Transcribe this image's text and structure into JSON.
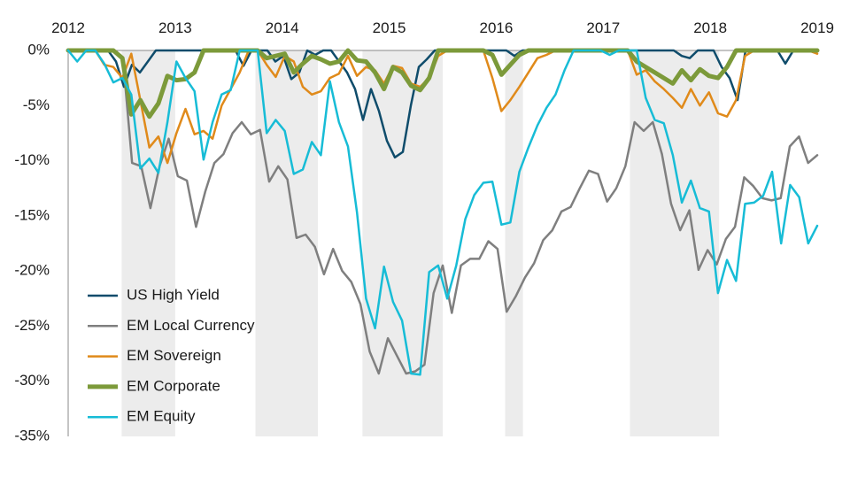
{
  "chart_data": {
    "type": "line",
    "title": "",
    "xlabel": "",
    "ylabel": "",
    "x_start": "2012-01",
    "x_end": "2019-01",
    "x_ticks": [
      "2012",
      "2013",
      "2014",
      "2015",
      "2016",
      "2017",
      "2018",
      "2019"
    ],
    "y_ticks": [
      "0%",
      "-5%",
      "-10%",
      "-15%",
      "-20%",
      "-25%",
      "-30%",
      "-35%"
    ],
    "ylim": [
      -35,
      0
    ],
    "legend_position": "bottom-left",
    "shaded_periods": [
      [
        "2012-07",
        "2013-01"
      ],
      [
        "2013-10",
        "2014-05"
      ],
      [
        "2014-10",
        "2015-07"
      ],
      [
        "2016-02",
        "2016-04"
      ],
      [
        "2017-04",
        "2018-02"
      ]
    ],
    "series": [
      {
        "name": "US High Yield",
        "color": "#0f4c6b",
        "width": 2.5,
        "values": [
          0,
          0,
          0,
          0,
          0,
          0,
          -1,
          -3.3,
          -1.3,
          -2,
          -1,
          0,
          0,
          0,
          0,
          0,
          0,
          0,
          0,
          0,
          0,
          0,
          -1.4,
          0,
          0,
          0,
          -1,
          -0.5,
          -2.6,
          -2,
          0,
          -0.4,
          0,
          0,
          -1,
          -2,
          -3.5,
          -6.3,
          -3.5,
          -5.5,
          -8.2,
          -9.7,
          -9.2,
          -5,
          -1.5,
          -0.8,
          0,
          0,
          0,
          0,
          0,
          0,
          0,
          0,
          0,
          0,
          -0.5,
          0,
          0,
          0,
          0,
          0,
          0,
          0,
          0,
          0,
          0,
          0,
          0,
          0,
          0,
          0,
          0,
          0,
          0,
          0,
          0,
          -0.5,
          -0.7,
          0,
          0,
          0,
          -1.5,
          -2.5,
          -4.5,
          0,
          0,
          0,
          0,
          0,
          -1.2,
          0,
          0,
          0,
          0
        ]
      },
      {
        "name": "EM Local Currency",
        "color": "#7f7f7f",
        "width": 2.5,
        "values": [
          0,
          0,
          0,
          0,
          0,
          0,
          -0.8,
          -10.2,
          -10.5,
          -14.3,
          -10.5,
          -8,
          -11.4,
          -11.8,
          -16,
          -12.8,
          -10.2,
          -9.4,
          -7.5,
          -6.5,
          -7.6,
          -7.2,
          -11.9,
          -10.5,
          -11.7,
          -17,
          -16.7,
          -17.8,
          -20.3,
          -18,
          -20,
          -21,
          -23,
          -27.3,
          -29.3,
          -26.1,
          -27.7,
          -29.3,
          -29.1,
          -28.5,
          -22,
          -19.5,
          -23.8,
          -19.5,
          -18.9,
          -18.9,
          -17.3,
          -18,
          -23.7,
          -22.3,
          -20.6,
          -19.3,
          -17.2,
          -16.3,
          -14.6,
          -14.2,
          -12.5,
          -10.9,
          -11.2,
          -13.7,
          -12.5,
          -10.5,
          -6.5,
          -7.3,
          -6.5,
          -9.4,
          -13.9,
          -16.3,
          -14.5,
          -19.9,
          -18.1,
          -19.4,
          -17.1,
          -16,
          -11.5,
          -12.3,
          -13.4,
          -13.6,
          -13.4,
          -8.7,
          -7.8,
          -10.2,
          -9.5
        ]
      },
      {
        "name": "EM Sovereign",
        "color": "#e08a1a",
        "width": 2.5,
        "values": [
          0,
          0,
          0,
          0,
          -1.3,
          -1.5,
          -2.5,
          -0.3,
          -4.5,
          -8.8,
          -7.8,
          -10.2,
          -7.5,
          -5.3,
          -7.6,
          -7.3,
          -8,
          -5,
          -3.5,
          -2,
          0,
          0,
          -1.3,
          -2.4,
          -0.5,
          -1,
          -3.3,
          -4,
          -3.7,
          -2.5,
          -2.1,
          -0.5,
          -2.3,
          -1.5,
          -1.8,
          -3,
          -1.4,
          -1.6,
          -3,
          -3.3,
          -2.5,
          -0.5,
          0,
          0,
          0,
          0,
          0,
          -2.5,
          -5.5,
          -4.5,
          -3.3,
          -2,
          -0.7,
          -0.4,
          0,
          0,
          0,
          0,
          0,
          0,
          0,
          0,
          0,
          -2.2,
          -1.8,
          -2.8,
          -3.5,
          -4.3,
          -5.2,
          -3.5,
          -5,
          -3.8,
          -5.7,
          -6,
          -4.5,
          -0.5,
          0,
          0,
          0,
          0,
          0,
          0,
          0,
          -0.3
        ]
      },
      {
        "name": "EM Corporate",
        "color": "#7c9a3a",
        "width": 5,
        "values": [
          0,
          0,
          0,
          0,
          0,
          0,
          -0.7,
          -5.8,
          -4.5,
          -6,
          -4.8,
          -2.3,
          -2.7,
          -2.6,
          -2,
          0,
          0,
          0,
          0,
          0,
          0,
          0,
          -0.7,
          -0.5,
          -0.3,
          -2,
          -1.2,
          -0.5,
          -0.8,
          -1.2,
          -1,
          0,
          -0.9,
          -1,
          -2,
          -3.5,
          -1.5,
          -2,
          -3.2,
          -3.6,
          -2.5,
          0,
          0,
          0,
          0,
          0,
          0,
          -0.4,
          -2.2,
          -1.3,
          -0.4,
          0,
          0,
          0,
          0,
          0,
          0,
          0,
          0,
          0,
          0,
          0,
          0,
          -1,
          -1.5,
          -2,
          -2.5,
          -3,
          -1.8,
          -2.7,
          -1.7,
          -2.3,
          -2.5,
          -1.5,
          0,
          0,
          0,
          0,
          0,
          0,
          0,
          0,
          0,
          0
        ]
      },
      {
        "name": "EM Equity",
        "color": "#17bcd6",
        "width": 2.5,
        "values": [
          0,
          -1,
          0,
          0,
          -1.2,
          -2.9,
          -2.5,
          -4,
          -10.7,
          -9.8,
          -11.1,
          -6.5,
          -1,
          -2.5,
          -3.7,
          -9.9,
          -6.5,
          -4,
          -3.6,
          0,
          0,
          0,
          -7.5,
          -6.3,
          -7.3,
          -11.2,
          -10.8,
          -8.3,
          -9.5,
          -2.8,
          -6.5,
          -8.7,
          -14.7,
          -22.5,
          -25.2,
          -19.6,
          -22.8,
          -24.5,
          -29.3,
          -29.4,
          -20.1,
          -19.5,
          -22.5,
          -19.5,
          -15.3,
          -13.1,
          -12,
          -11.9,
          -15.8,
          -15.6,
          -11,
          -8.8,
          -6.8,
          -5.2,
          -4,
          -1.8,
          0,
          0,
          0,
          0,
          -0.4,
          0,
          0,
          0,
          -4.3,
          -6.3,
          -6.6,
          -9.5,
          -13.8,
          -11.8,
          -14.3,
          -14.6,
          -22,
          -19,
          -20.9,
          -13.9,
          -13.8,
          -13.2,
          -11,
          -17.5,
          -12.2,
          -13.3,
          -17.5,
          -15.9
        ]
      }
    ]
  }
}
